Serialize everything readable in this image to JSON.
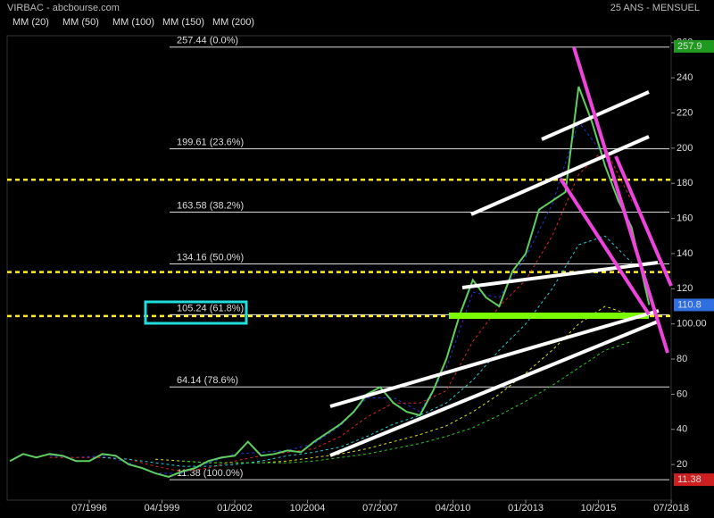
{
  "chart_data": {
    "type": "line",
    "title": "VIRBAC - abcbourse.com",
    "subtitle": "25 ANS - MENSUEL",
    "x": [
      "07/1993",
      "01/1994",
      "07/1994",
      "01/1995",
      "07/1995",
      "01/1996",
      "07/1996",
      "01/1997",
      "07/1997",
      "01/1998",
      "07/1998",
      "01/1999",
      "07/1999",
      "01/2000",
      "07/2000",
      "01/2001",
      "07/2001",
      "01/2002",
      "07/2002",
      "01/2003",
      "07/2003",
      "01/2004",
      "07/2004",
      "01/2005",
      "07/2005",
      "01/2006",
      "07/2006",
      "01/2007",
      "07/2007",
      "01/2008",
      "07/2008",
      "01/2009",
      "07/2009",
      "01/2010",
      "07/2010",
      "01/2011",
      "07/2011",
      "01/2012",
      "07/2012",
      "01/2013",
      "07/2013",
      "01/2014",
      "07/2014",
      "01/2015",
      "07/2015",
      "01/2016",
      "07/2016",
      "01/2017",
      "09/2017"
    ],
    "series": [
      {
        "name": "VIRBAC",
        "color": "#5fcf5f",
        "values": [
          22,
          26,
          24,
          26,
          25,
          22,
          22,
          26,
          25,
          20,
          18,
          15,
          13,
          16,
          18,
          22,
          24,
          25,
          33,
          25,
          26,
          28,
          27,
          33,
          38,
          43,
          50,
          60,
          64,
          55,
          50,
          48,
          62,
          80,
          105,
          125,
          115,
          110,
          130,
          140,
          165,
          170,
          175,
          235,
          215,
          190,
          170,
          155,
          110.8
        ]
      }
    ],
    "averages": [
      {
        "name": "MM (20)",
        "color": "#2233dd",
        "x": [
          "01/1995",
          "01/1996",
          "01/1997",
          "01/1998",
          "01/1999",
          "01/2000",
          "01/2001",
          "01/2002",
          "01/2003",
          "01/2004",
          "01/2005",
          "01/2006",
          "01/2007",
          "01/2008",
          "01/2009",
          "01/2010",
          "01/2011",
          "01/2012",
          "01/2013",
          "01/2014",
          "01/2015",
          "01/2016",
          "01/2017"
        ],
        "values": [
          25,
          24,
          25,
          21,
          15,
          15,
          21,
          26,
          27,
          28,
          32,
          42,
          58,
          58,
          50,
          75,
          118,
          115,
          138,
          168,
          215,
          195,
          155
        ]
      },
      {
        "name": "MM (50)",
        "color": "#dd2222",
        "x": [
          "01/1995",
          "01/1996",
          "01/1997",
          "01/1998",
          "01/1999",
          "01/2000",
          "01/2001",
          "01/2002",
          "01/2003",
          "01/2004",
          "01/2005",
          "01/2006",
          "01/2007",
          "01/2008",
          "01/2009",
          "01/2010",
          "01/2011",
          "01/2012",
          "01/2013",
          "01/2014",
          "01/2015",
          "01/2016",
          "01/2017"
        ],
        "values": [
          24,
          24,
          24,
          23,
          19,
          16,
          18,
          22,
          25,
          27,
          29,
          36,
          47,
          55,
          55,
          62,
          90,
          110,
          125,
          150,
          185,
          200,
          170
        ]
      },
      {
        "name": "MM (100)",
        "color": "#22ccdd",
        "x": [
          "01/1997",
          "01/1998",
          "01/1999",
          "01/2000",
          "01/2001",
          "01/2002",
          "01/2003",
          "01/2004",
          "01/2005",
          "01/2006",
          "01/2007",
          "01/2008",
          "01/2009",
          "01/2010",
          "01/2011",
          "01/2012",
          "01/2013",
          "01/2014",
          "01/2015",
          "01/2016",
          "01/2017"
        ],
        "values": [
          24,
          23,
          21,
          19,
          19,
          20,
          22,
          25,
          27,
          30,
          36,
          43,
          48,
          55,
          68,
          85,
          100,
          120,
          145,
          150,
          135
        ]
      },
      {
        "name": "MM (150)",
        "color": "#dddd22",
        "x": [
          "01/1999",
          "01/2000",
          "01/2001",
          "01/2002",
          "01/2003",
          "01/2004",
          "01/2005",
          "01/2006",
          "01/2007",
          "01/2008",
          "01/2009",
          "01/2010",
          "01/2011",
          "01/2012",
          "01/2013",
          "01/2014",
          "01/2015",
          "01/2016",
          "01/2017"
        ],
        "values": [
          23,
          22,
          21,
          21,
          21,
          22,
          24,
          26,
          29,
          33,
          37,
          42,
          50,
          60,
          72,
          85,
          100,
          110,
          105
        ]
      },
      {
        "name": "MM (200)",
        "color": "#22cc22",
        "x": [
          "01/2000",
          "01/2001",
          "01/2002",
          "01/2003",
          "01/2004",
          "01/2005",
          "01/2006",
          "01/2007",
          "01/2008",
          "01/2009",
          "01/2010",
          "01/2011",
          "01/2012",
          "01/2013",
          "01/2014",
          "01/2015",
          "01/2016",
          "01/2017"
        ],
        "values": [
          22,
          21,
          21,
          21,
          21,
          22,
          24,
          26,
          29,
          32,
          36,
          41,
          48,
          56,
          65,
          75,
          85,
          90
        ]
      }
    ],
    "fibonacci": [
      {
        "value": 257.44,
        "label": "257.44  (0.0%)"
      },
      {
        "value": 199.61,
        "label": "199.61  (23.6%)"
      },
      {
        "value": 163.58,
        "label": "163.58  (38.2%)"
      },
      {
        "value": 134.16,
        "label": "134.16  (50.0%)"
      },
      {
        "value": 105.24,
        "label": "105.24  (61.8%)"
      },
      {
        "value": 64.14,
        "label": "64.14  (78.6%)"
      },
      {
        "value": 11.38,
        "label": "11.38  (100.0%)"
      }
    ],
    "support_lines": [
      182,
      129.5,
      104.5
    ],
    "price_labels": [
      {
        "value": 257.9,
        "color": "#1f9a1f"
      },
      {
        "value": 110.8,
        "color": "#2f6fe0"
      },
      {
        "value": 11.38,
        "color": "#cc1f1f"
      }
    ],
    "ylim": [
      0,
      264
    ],
    "yticks": [
      20,
      40,
      60,
      80,
      {
        "value": 100,
        "label": "100.00"
      },
      120,
      140,
      160,
      180,
      200,
      220,
      240,
      260
    ],
    "xticks": [
      "07/1996",
      "04/1999",
      "01/2002",
      "10/2004",
      "07/2007",
      "04/2010",
      "01/2013",
      "10/2015",
      "07/2018"
    ]
  }
}
